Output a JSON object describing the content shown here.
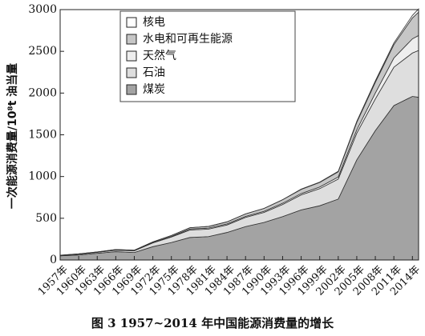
{
  "chart_data": {
    "type": "stacked_area",
    "title": "图 3 1957~2014 年中国能源消费量的增长",
    "y_label": "一次能源消费量/10⁸t 油当量",
    "x": [
      1957,
      1960,
      1963,
      1966,
      1969,
      1972,
      1975,
      1978,
      1981,
      1984,
      1987,
      1990,
      1993,
      1996,
      1999,
      2002,
      2005,
      2008,
      2011,
      2014,
      2015
    ],
    "xlim": [
      1957,
      2015
    ],
    "xticks": [
      {
        "value": 1957,
        "label": "1957年"
      },
      {
        "value": 1960,
        "label": "1960年"
      },
      {
        "value": 1963,
        "label": "1963年"
      },
      {
        "value": 1966,
        "label": "1966年"
      },
      {
        "value": 1969,
        "label": "1969年"
      },
      {
        "value": 1972,
        "label": "1972年"
      },
      {
        "value": 1975,
        "label": "1975年"
      },
      {
        "value": 1978,
        "label": "1978年"
      },
      {
        "value": 1981,
        "label": "1981年"
      },
      {
        "value": 1984,
        "label": "1984年"
      },
      {
        "value": 1987,
        "label": "1987年"
      },
      {
        "value": 1990,
        "label": "1990年"
      },
      {
        "value": 1993,
        "label": "1993年"
      },
      {
        "value": 1996,
        "label": "1996年"
      },
      {
        "value": 1999,
        "label": "1999年"
      },
      {
        "value": 2002,
        "label": "2002年"
      },
      {
        "value": 2005,
        "label": "2005年"
      },
      {
        "value": 2008,
        "label": "2008年"
      },
      {
        "value": 2011,
        "label": "2011年"
      },
      {
        "value": 2014,
        "label": "2014年"
      }
    ],
    "ylim": [
      0,
      3000
    ],
    "yticks": [
      0,
      500,
      1000,
      1500,
      2000,
      2500,
      3000
    ],
    "legend": "top-left",
    "series": [
      {
        "name": "煤炭",
        "color": "#a3a3a3",
        "values": [
          50,
          60,
          80,
          100,
          90,
          160,
          210,
          270,
          280,
          330,
          400,
          450,
          520,
          600,
          650,
          730,
          1200,
          1550,
          1850,
          1960,
          1950
        ]
      },
      {
        "name": "石油",
        "color": "#dedede",
        "values": [
          5,
          10,
          12,
          18,
          20,
          45,
          65,
          90,
          90,
          90,
          110,
          120,
          145,
          180,
          205,
          240,
          320,
          380,
          460,
          520,
          560
        ]
      },
      {
        "name": "天然气",
        "color": "#eeeeee",
        "values": [
          0,
          1,
          1,
          2,
          2,
          4,
          7,
          12,
          12,
          12,
          12,
          13,
          15,
          16,
          20,
          25,
          40,
          70,
          110,
          170,
          180
        ]
      },
      {
        "name": "水电和可再生能源",
        "color": "#c6c6c6",
        "values": [
          2,
          3,
          4,
          5,
          5,
          8,
          12,
          15,
          20,
          25,
          30,
          35,
          42,
          50,
          55,
          62,
          90,
          130,
          160,
          250,
          280
        ]
      },
      {
        "name": "核电",
        "color": "#ffffff",
        "values": [
          0,
          0,
          0,
          0,
          0,
          0,
          0,
          0,
          0,
          0,
          0,
          0,
          1,
          3,
          3,
          6,
          12,
          16,
          20,
          30,
          38
        ]
      }
    ]
  }
}
